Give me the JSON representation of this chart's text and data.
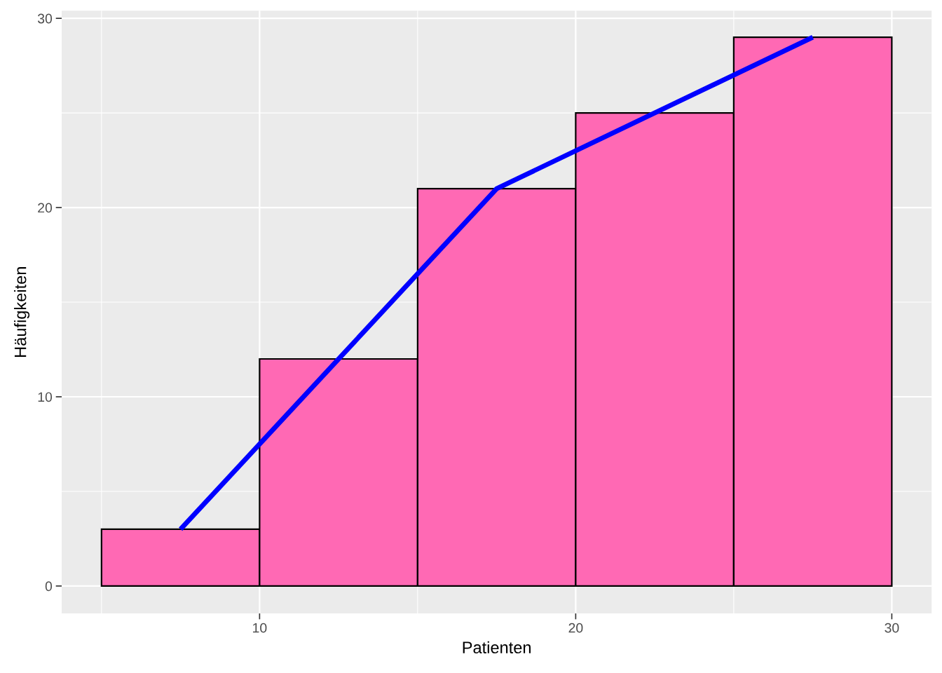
{
  "chart_data": {
    "type": "histogram",
    "xlabel": "Patienten",
    "ylabel": "Häufigkeiten",
    "bins": [
      5,
      10,
      15,
      20,
      25,
      30
    ],
    "values": [
      3,
      12,
      21,
      25,
      29
    ],
    "color": "#ff69b4",
    "series": [
      {
        "type": "line",
        "x": [
          7.5,
          17.5,
          27.5
        ],
        "values": [
          3,
          21,
          29
        ],
        "color": "#0000ff"
      }
    ],
    "xlim": [
      3.74,
      31.26
    ],
    "xticks": [
      10,
      20,
      30
    ],
    "ylim": [
      -1.45,
      30.4
    ],
    "yticks": [
      0,
      10,
      20,
      30
    ],
    "grid": true
  }
}
